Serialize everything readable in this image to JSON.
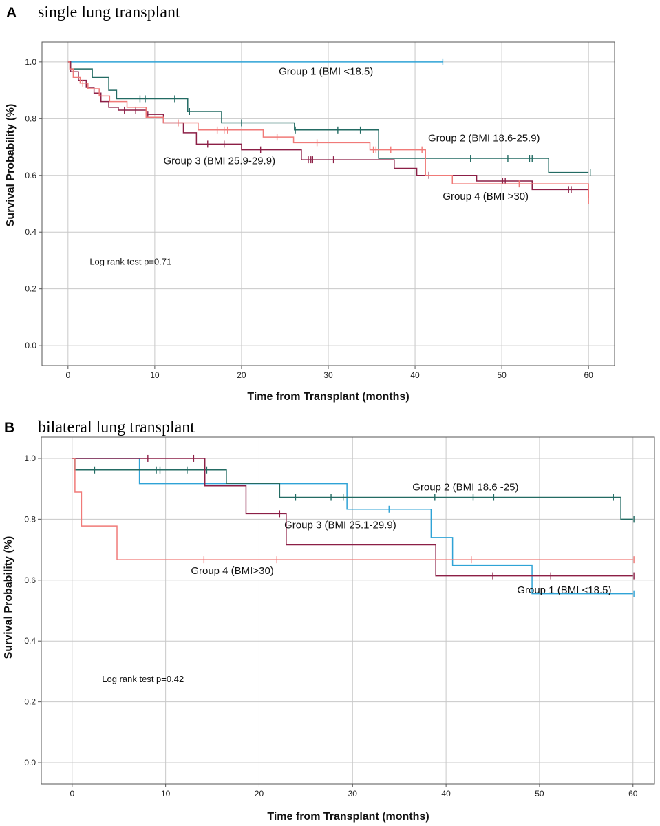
{
  "chart_data": [
    {
      "type": "line",
      "panel_letter": "A",
      "title": "single lung transplant",
      "xlabel": "Time from Transplant (months)",
      "ylabel": "Survival Probability (%)",
      "xlim": [
        -3,
        63
      ],
      "ylim": [
        -0.07,
        1.07
      ],
      "xticks": [
        0,
        10,
        20,
        30,
        40,
        50,
        60
      ],
      "yticks": [
        0.0,
        0.2,
        0.4,
        0.6,
        0.8,
        1.0
      ],
      "ytick_labels": [
        "0.0",
        "0.2",
        "0.4",
        "0.6",
        "0.8",
        "1.0"
      ],
      "grid": true,
      "annotation": "Log rank test p=0.71",
      "series": [
        {
          "name": "Group 1 (BMI <18.5)",
          "color": "#2fa3d6",
          "x": [
            0,
            43.2
          ],
          "y": [
            1.0,
            1.0
          ],
          "censor_x": [
            43.2
          ]
        },
        {
          "name": "Group 2 (BMI 18.6-25.9)",
          "color": "#236b63",
          "x": [
            0,
            0.3,
            2.8,
            4.7,
            5.6,
            13.8,
            17.7,
            26.1,
            35.8,
            55.4,
            60
          ],
          "y": [
            1.0,
            0.975,
            0.945,
            0.9,
            0.87,
            0.825,
            0.785,
            0.76,
            0.66,
            0.61,
            0.61
          ],
          "censor_x": [
            8.3,
            8.9,
            12.3,
            14.0,
            20.0,
            26.2,
            31.1,
            33.7,
            46.4,
            50.7,
            53.2,
            53.5,
            60.2
          ]
        },
        {
          "name": "Group 3 (BMI 25.9-29.9)",
          "color": "#8c1f46",
          "x": [
            0,
            0.3,
            1.2,
            2.1,
            3.0,
            3.8,
            4.7,
            5.8,
            9.0,
            11.0,
            13.3,
            14.8,
            20.0,
            26.9,
            37.6,
            40.2,
            47.1,
            53.5,
            60
          ],
          "y": [
            1.0,
            0.965,
            0.935,
            0.91,
            0.89,
            0.86,
            0.84,
            0.83,
            0.815,
            0.785,
            0.75,
            0.71,
            0.69,
            0.655,
            0.625,
            0.6,
            0.58,
            0.55,
            0.52
          ],
          "censor_x": [
            6.5,
            7.8,
            9.2,
            16.1,
            18.0,
            22.2,
            27.7,
            28.0,
            28.2,
            30.6,
            41.6,
            50.1,
            50.4,
            57.7,
            58.0
          ]
        },
        {
          "name": "Group 4 (BMI >30)",
          "color": "#f07a78",
          "x": [
            0,
            0.2,
            0.6,
            1.4,
            2.3,
            3.6,
            4.8,
            6.8,
            9.0,
            11.0,
            15.0,
            22.5,
            26.0,
            34.8,
            41.2,
            44.3,
            60
          ],
          "y": [
            1.0,
            0.975,
            0.945,
            0.925,
            0.905,
            0.88,
            0.86,
            0.84,
            0.805,
            0.785,
            0.76,
            0.735,
            0.715,
            0.69,
            0.6,
            0.57,
            0.5
          ],
          "censor_x": [
            1.7,
            12.7,
            17.2,
            18.0,
            18.4,
            24.1,
            28.7,
            35.2,
            35.5,
            37.2,
            40.8,
            52.0
          ]
        }
      ],
      "labels": [
        {
          "series": 0,
          "text": "Group 1 (BMI <18.5)",
          "x": 24.3,
          "y": 0.955
        },
        {
          "series": 1,
          "text": "Group 2 (BMI 18.6-25.9)",
          "x": 41.5,
          "y": 0.72
        },
        {
          "series": 2,
          "text": "Group 3 (BMI 25.9-29.9)",
          "x": 11.0,
          "y": 0.64
        },
        {
          "series": 3,
          "text": "Group 4 (BMI >30)",
          "x": 43.2,
          "y": 0.515
        }
      ],
      "annotation_pos": {
        "x": 2.5,
        "y": 0.285
      }
    },
    {
      "type": "line",
      "panel_letter": "B",
      "title": "bilateral lung transplant",
      "xlabel": "Time from Transplant (months)",
      "ylabel": "Survival Probability (%)",
      "xlim": [
        -3.3,
        62.3
      ],
      "ylim": [
        -0.07,
        1.07
      ],
      "xticks": [
        0,
        10,
        20,
        30,
        40,
        50,
        60
      ],
      "yticks": [
        0.0,
        0.2,
        0.4,
        0.6,
        0.8,
        1.0
      ],
      "ytick_labels": [
        "0.0",
        "0.2",
        "0.4",
        "0.6",
        "0.8",
        "1.0"
      ],
      "grid": true,
      "annotation": "Log rank test p=0.42",
      "series": [
        {
          "name": "Group 1 (BMI <18.5)",
          "color": "#2fa3d6",
          "x": [
            0,
            7.2,
            29.4,
            38.4,
            40.7,
            49.2,
            60
          ],
          "y": [
            1.0,
            0.917,
            0.833,
            0.74,
            0.648,
            0.555,
            0.555
          ],
          "censor_x": [
            33.9,
            60.1
          ]
        },
        {
          "name": "Group 2 (BMI 18.6 -25)",
          "color": "#236b63",
          "x": [
            0,
            0.3,
            16.5,
            22.2,
            58.7,
            60
          ],
          "y": [
            1.0,
            0.962,
            0.918,
            0.872,
            0.8,
            0.8
          ],
          "censor_x": [
            2.4,
            9.0,
            9.4,
            12.3,
            14.4,
            23.9,
            27.7,
            29.0,
            38.8,
            42.9,
            45.1,
            57.9,
            60.1
          ]
        },
        {
          "name": "Group 3 (BMI 25.1-29.9)",
          "color": "#8c1f46",
          "x": [
            0,
            14.2,
            18.6,
            22.9,
            38.9,
            60
          ],
          "y": [
            1.0,
            0.91,
            0.818,
            0.716,
            0.614,
            0.614
          ],
          "censor_x": [
            8.1,
            13.0,
            22.2,
            45.0,
            51.2,
            60.1
          ]
        },
        {
          "name": "Group 4 (BMI>30)",
          "color": "#f07a78",
          "x": [
            0,
            0.3,
            1.0,
            4.8,
            60
          ],
          "y": [
            1.0,
            0.889,
            0.778,
            0.667,
            0.667
          ],
          "censor_x": [
            14.1,
            21.9,
            42.7,
            60.1
          ]
        }
      ],
      "labels": [
        {
          "series": 1,
          "text": "Group 2 (BMI 18.6 -25)",
          "x": 36.4,
          "y": 0.895
        },
        {
          "series": 2,
          "text": "Group 3 (BMI 25.1-29.9)",
          "x": 22.7,
          "y": 0.77
        },
        {
          "series": 3,
          "text": "Group 4 (BMI>30)",
          "x": 12.7,
          "y": 0.62
        },
        {
          "series": 0,
          "text": "Group 1 (BMI <18.5)",
          "x": 47.6,
          "y": 0.556
        }
      ],
      "annotation_pos": {
        "x": 3.2,
        "y": 0.265
      }
    }
  ]
}
